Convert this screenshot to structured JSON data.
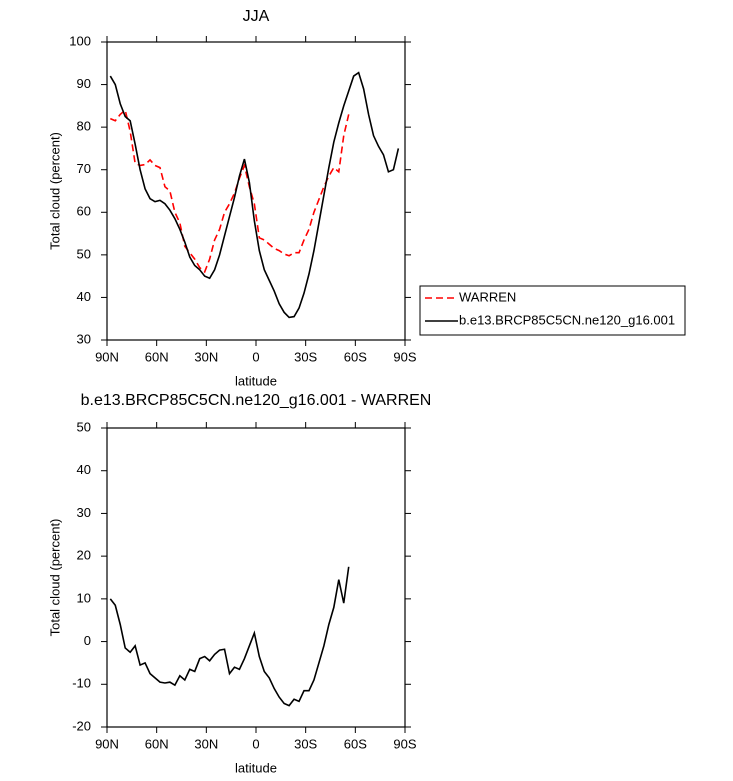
{
  "chart_data": [
    {
      "type": "line",
      "title": "JJA",
      "x_label": "latitude",
      "y_label": "Total cloud (percent)",
      "x": [
        88,
        85,
        82,
        79,
        76,
        73,
        70,
        67,
        64,
        61,
        58,
        55,
        52,
        49,
        46,
        43,
        40,
        37,
        34,
        31,
        28,
        25,
        22,
        19,
        16,
        13,
        10,
        7,
        4,
        1,
        -2,
        -5,
        -8,
        -11,
        -14,
        -17,
        -20,
        -23,
        -26,
        -29,
        -32,
        -35,
        -38,
        -41,
        -44,
        -47,
        -50,
        -53,
        -56,
        -59,
        -62,
        -65,
        -68,
        -71,
        -74,
        -77,
        -80,
        -83,
        -86
      ],
      "series": [
        {
          "name": "WARREN",
          "color": "#ff0000",
          "dashed": true,
          "values": [
            82,
            81.5,
            83,
            84,
            79,
            71.5,
            71,
            71.2,
            72.3,
            71,
            70.5,
            66,
            65,
            60,
            57.5,
            52,
            50.5,
            49,
            47,
            46,
            49,
            53.5,
            56,
            60,
            62,
            64.5,
            68,
            71,
            66,
            62,
            54,
            53.5,
            52.5,
            51.5,
            51,
            50.2,
            49.8,
            50.5,
            50.5,
            53.5,
            56,
            60,
            63,
            66,
            68.5,
            70.5,
            69.5,
            78,
            83,
            null,
            null,
            null,
            null,
            null,
            null,
            null,
            null,
            null,
            null
          ]
        },
        {
          "name": "b.e13.BRCP85C5CN.ne120_g16.001",
          "color": "#000000",
          "dashed": false,
          "values": [
            92,
            90,
            85.5,
            82.5,
            81.5,
            76,
            70,
            65.5,
            63.2,
            62.5,
            62.8,
            62,
            60.5,
            58.5,
            56,
            53,
            49.5,
            47.5,
            46.5,
            45,
            44.5,
            46.5,
            50,
            54.5,
            59,
            63.5,
            68.5,
            72.5,
            67,
            58,
            51,
            46.5,
            44,
            41.5,
            38.5,
            36.5,
            35.3,
            35.5,
            37.5,
            41,
            45.5,
            51,
            57.5,
            64,
            70.5,
            76.5,
            81,
            85,
            88.5,
            92,
            92.8,
            89,
            83,
            78,
            75.5,
            73.5,
            69.5,
            70,
            75
          ]
        }
      ],
      "xlim": [
        90,
        -90
      ],
      "xticks": [
        {
          "value": 90,
          "label": "90N"
        },
        {
          "value": 60,
          "label": "60N"
        },
        {
          "value": 30,
          "label": "30N"
        },
        0,
        {
          "value": -30,
          "label": "30S"
        },
        {
          "value": -60,
          "label": "60S"
        },
        {
          "value": -90,
          "label": "90S"
        }
      ],
      "ylim": [
        30,
        100
      ],
      "yticks": [
        30,
        40,
        50,
        60,
        70,
        80,
        90,
        100
      ],
      "legend": "right"
    },
    {
      "type": "line",
      "title": "b.e13.BRCP85C5CN.ne120_g16.001 - WARREN",
      "x_label": "latitude",
      "y_label": "Total cloud (percent)",
      "x": [
        88,
        85,
        82,
        79,
        76,
        73,
        70,
        67,
        64,
        61,
        58,
        55,
        52,
        49,
        46,
        43,
        40,
        37,
        34,
        31,
        28,
        25,
        22,
        19,
        16,
        13,
        10,
        7,
        4,
        1,
        -2,
        -5,
        -8,
        -11,
        -14,
        -17,
        -20,
        -23,
        -26,
        -29,
        -32,
        -35,
        -38,
        -41,
        -44,
        -47,
        -50,
        -53,
        -56,
        -59,
        -62,
        -65,
        -68,
        -71,
        -74,
        -77,
        -80,
        -83,
        -86
      ],
      "color": "#000000",
      "values": [
        10,
        8.5,
        4,
        -1.5,
        -2.5,
        -1,
        -5.5,
        -5,
        -7.5,
        -8.5,
        -9.5,
        -9.7,
        -9.5,
        -10.2,
        -8,
        -9,
        -6.5,
        -7,
        -4,
        -3.5,
        -4.5,
        -3,
        -2,
        -1.8,
        -7.5,
        -6,
        -6.5,
        -4,
        -1,
        2,
        -3.5,
        -7,
        -8.5,
        -11,
        -13,
        -14.5,
        -15,
        -13.5,
        -14,
        -11.5,
        -11.5,
        -9,
        -5,
        -1,
        4,
        8,
        14.5,
        9,
        17.5,
        null,
        null,
        null,
        null,
        null,
        null,
        null,
        null,
        null,
        null
      ],
      "xlim": [
        90,
        -90
      ],
      "xticks": [
        {
          "value": 90,
          "label": "90N"
        },
        {
          "value": 60,
          "label": "60N"
        },
        {
          "value": 30,
          "label": "30N"
        },
        0,
        {
          "value": -30,
          "label": "30S"
        },
        {
          "value": -60,
          "label": "60S"
        },
        {
          "value": -90,
          "label": "90S"
        }
      ],
      "ylim": [
        -20,
        50
      ],
      "yticks": [
        -20,
        -10,
        0,
        10,
        20,
        30,
        40,
        50
      ]
    }
  ]
}
